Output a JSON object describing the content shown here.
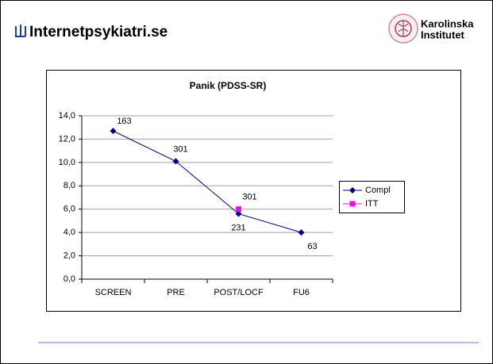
{
  "header": {
    "site": "Internetpsykiatri.se",
    "institute": [
      "Karolinska",
      "Institutet"
    ]
  },
  "chart_data": {
    "type": "line",
    "title": "Panik (PDSS-SR)",
    "categories": [
      "SCREEN",
      "PRE",
      "POST/LOCF",
      "FU6"
    ],
    "series": [
      {
        "name": "Compl",
        "color": "#000080",
        "marker": "diamond",
        "values": [
          12.7,
          10.1,
          5.6,
          4.0
        ],
        "labels": [
          "163",
          "301",
          "231",
          "63"
        ]
      },
      {
        "name": "ITT",
        "color": "#ff00ff",
        "marker": "square",
        "values": [
          null,
          null,
          6.0,
          null
        ],
        "labels": [
          null,
          null,
          "301",
          null
        ]
      }
    ],
    "ylim": [
      0,
      14
    ],
    "yticks": [
      {
        "value": 0,
        "label": "0,0"
      },
      {
        "value": 2,
        "label": "2,0"
      },
      {
        "value": 4,
        "label": "4,0"
      },
      {
        "value": 6,
        "label": "6,0"
      },
      {
        "value": 8,
        "label": "8,0"
      },
      {
        "value": 10,
        "label": "10,0"
      },
      {
        "value": 12,
        "label": "12,0"
      },
      {
        "value": 14,
        "label": "14,0"
      }
    ],
    "grid": true,
    "legend": "right"
  }
}
